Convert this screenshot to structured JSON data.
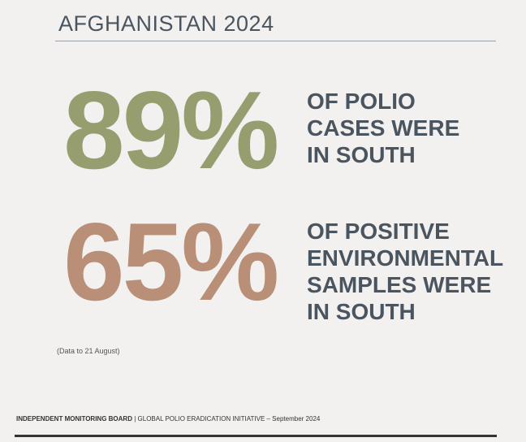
{
  "header": {
    "title": "AFGHANISTAN 2024"
  },
  "stats": [
    {
      "figure": "89%",
      "lines": [
        "OF POLIO",
        "CASES WERE",
        "IN SOUTH"
      ]
    },
    {
      "figure": "65%",
      "lines": [
        "OF POSITIVE",
        "ENVIRONMENTAL",
        "SAMPLES WERE",
        "IN SOUTH"
      ]
    }
  ],
  "note": "(Data to 21 August)",
  "footer": {
    "organization": "INDEPENDENT MONITORING BOARD",
    "separator": "|",
    "text": "GLOBAL POLIO ERADICATION INITIATIVE – September 2024"
  }
}
